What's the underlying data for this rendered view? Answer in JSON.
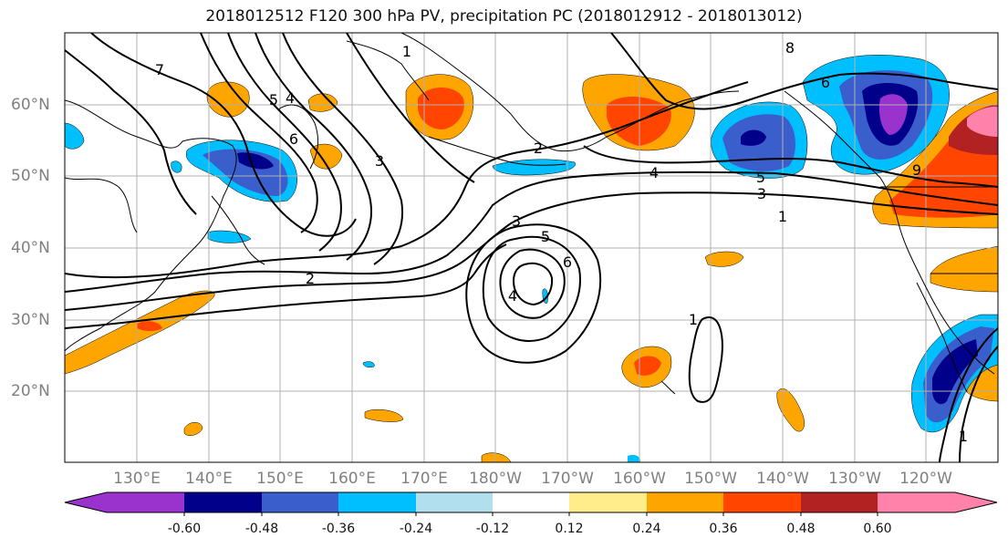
{
  "title": "2018012512 F120 300 hPa PV, precipitation PC (2018012912 - 2018013012)",
  "lat_labels": [
    "20°N",
    "30°N",
    "40°N",
    "50°N",
    "60°N"
  ],
  "lon_labels": [
    "130°E",
    "140°E",
    "150°E",
    "160°E",
    "170°E",
    "180°W",
    "170°W",
    "160°W",
    "150°W",
    "140°W",
    "130°W",
    "120°W"
  ],
  "colorbar": {
    "colors": [
      "#9a32cd",
      "#00008b",
      "#3a5fcd",
      "#00bfff",
      "#b2dfee",
      "#ffffff",
      "#ffec8b",
      "#ffa500",
      "#ff4500",
      "#b22222",
      "#ff82ab"
    ],
    "tick_labels": [
      "-0.60",
      "-0.48",
      "-0.36",
      "-0.24",
      "-0.12",
      "0.12",
      "0.24",
      "0.36",
      "0.48",
      "0.60"
    ]
  },
  "contour_labels": [
    "7",
    "5",
    "4",
    "6",
    "3",
    "1",
    "2",
    "3",
    "5",
    "6",
    "4",
    "2",
    "4",
    "5",
    "3",
    "1",
    "6",
    "8",
    "9",
    "1",
    "1"
  ],
  "map_data": {
    "projection": "cylindrical",
    "lon_range": [
      "120°E",
      "110°W"
    ],
    "lat_range": [
      "10°N",
      "70°N"
    ],
    "field_contours": "300 hPa PV (PVU)",
    "field_shaded": "precipitation PC"
  }
}
